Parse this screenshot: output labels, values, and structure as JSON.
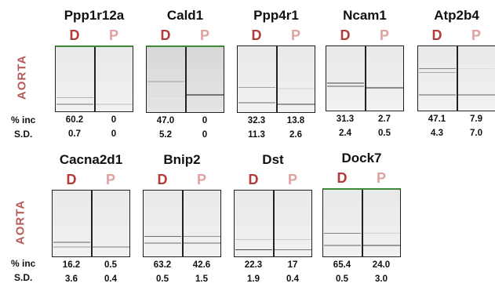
{
  "tissue_label": "AORTA",
  "lane_labels": {
    "d": "D",
    "p": "P"
  },
  "row_labels": {
    "inc": "% inc",
    "sd": "S.D."
  },
  "genes": [
    {
      "name": "Ppp1r12a",
      "inc": [
        "60.2",
        "0"
      ],
      "sd": [
        "0.7",
        "0"
      ]
    },
    {
      "name": "Cald1",
      "inc": [
        "47.0",
        "0"
      ],
      "sd": [
        "5.2",
        "0"
      ]
    },
    {
      "name": "Ppp4r1",
      "inc": [
        "32.3",
        "13.8"
      ],
      "sd": [
        "11.3",
        "2.6"
      ]
    },
    {
      "name": "Ncam1",
      "inc": [
        "31.3",
        "2.7"
      ],
      "sd": [
        "2.4",
        "0.5"
      ]
    },
    {
      "name": "Atp2b4",
      "inc": [
        "47.1",
        "7.9"
      ],
      "sd": [
        "4.3",
        "7.0"
      ]
    },
    {
      "name": "Cacna2d1",
      "inc": [
        "16.2",
        "0.5"
      ],
      "sd": [
        "3.6",
        "0.4"
      ]
    },
    {
      "name": "Bnip2",
      "inc": [
        "63.2",
        "42.6"
      ],
      "sd": [
        "0.5",
        "1.5"
      ]
    },
    {
      "name": "Dst",
      "inc": [
        "22.3",
        "17"
      ],
      "sd": [
        "1.9",
        "0.4"
      ]
    },
    {
      "name": "Dock7",
      "inc": [
        "65.4",
        "24.0"
      ],
      "sd": [
        "0.5",
        "3.0"
      ]
    }
  ]
}
